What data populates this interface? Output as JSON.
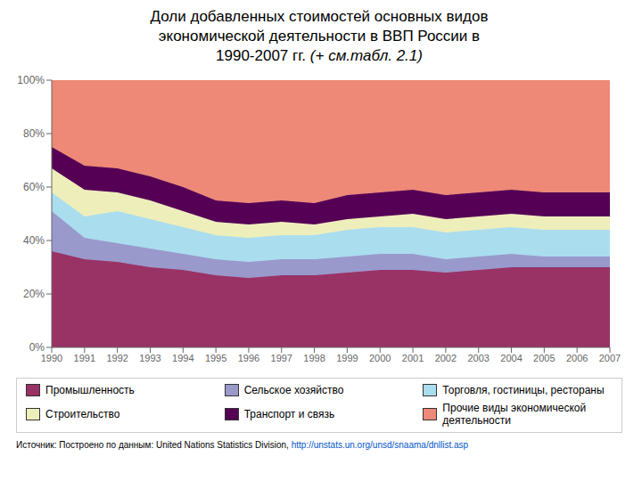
{
  "chart_data": {
    "type": "area",
    "title": "Доли добавленных стоимостей основных видов\nэкономической деятельности в ВВП России в\n1990-2007 гг.",
    "subtitle": "(+ см.табл. 2.1)",
    "annotations": [
      "Источник: Построено по данным: United Nations Statistics Division,",
      "http://unstats.un.org/unsd/snaama/dnllist.asp"
    ],
    "x": [
      1990,
      1991,
      1992,
      1993,
      1994,
      1995,
      1996,
      1997,
      1998,
      1999,
      2000,
      2001,
      2002,
      2003,
      2004,
      2005,
      2006,
      2007
    ],
    "series": [
      {
        "name": "Промышленность",
        "color": "#993366",
        "values": [
          36,
          33,
          32,
          30,
          29,
          27,
          26,
          27,
          27,
          28,
          29,
          29,
          28,
          29,
          30,
          30,
          30,
          30
        ]
      },
      {
        "name": "Сельское хозяйство",
        "color": "#9999cc",
        "values": [
          15,
          8,
          7,
          7,
          6,
          6,
          6,
          6,
          6,
          6,
          6,
          6,
          5,
          5,
          5,
          4,
          4,
          4
        ]
      },
      {
        "name": "Торговля, гостиницы, рестораны",
        "color": "#aaddee",
        "values": [
          7,
          8,
          12,
          11,
          10,
          9,
          9,
          9,
          9,
          10,
          10,
          10,
          10,
          10,
          10,
          10,
          10,
          10
        ]
      },
      {
        "name": "Строительство",
        "color": "#eeeebb",
        "values": [
          9,
          10,
          7,
          7,
          6,
          5,
          5,
          5,
          4,
          4,
          4,
          5,
          5,
          5,
          5,
          5,
          5,
          5
        ]
      },
      {
        "name": "Транспорт и связь",
        "color": "#550055",
        "values": [
          8,
          9,
          9,
          9,
          9,
          8,
          8,
          8,
          8,
          9,
          9,
          9,
          9,
          9,
          9,
          9,
          9,
          9
        ]
      },
      {
        "name": "Прочие виды экономической деятельности",
        "color": "#ee8877",
        "values": [
          25,
          32,
          33,
          36,
          40,
          45,
          46,
          45,
          46,
          43,
          42,
          41,
          43,
          42,
          41,
          42,
          42,
          42
        ]
      }
    ],
    "xlim": [
      1990,
      2007
    ],
    "xticks": [
      1990,
      1991,
      1992,
      1993,
      1994,
      1995,
      1996,
      1997,
      1998,
      1999,
      2000,
      2001,
      2002,
      2003,
      2004,
      2005,
      2006,
      2007
    ],
    "ylim": [
      0,
      100
    ],
    "yticks": [
      {
        "value": 0,
        "label": "0%"
      },
      {
        "value": 20,
        "label": "20%"
      },
      {
        "value": 40,
        "label": "40%"
      },
      {
        "value": 60,
        "label": "60%"
      },
      {
        "value": 80,
        "label": "80%"
      },
      {
        "value": 100,
        "label": "100%"
      }
    ],
    "stacked": true,
    "grid": false,
    "legend": "bottom"
  }
}
